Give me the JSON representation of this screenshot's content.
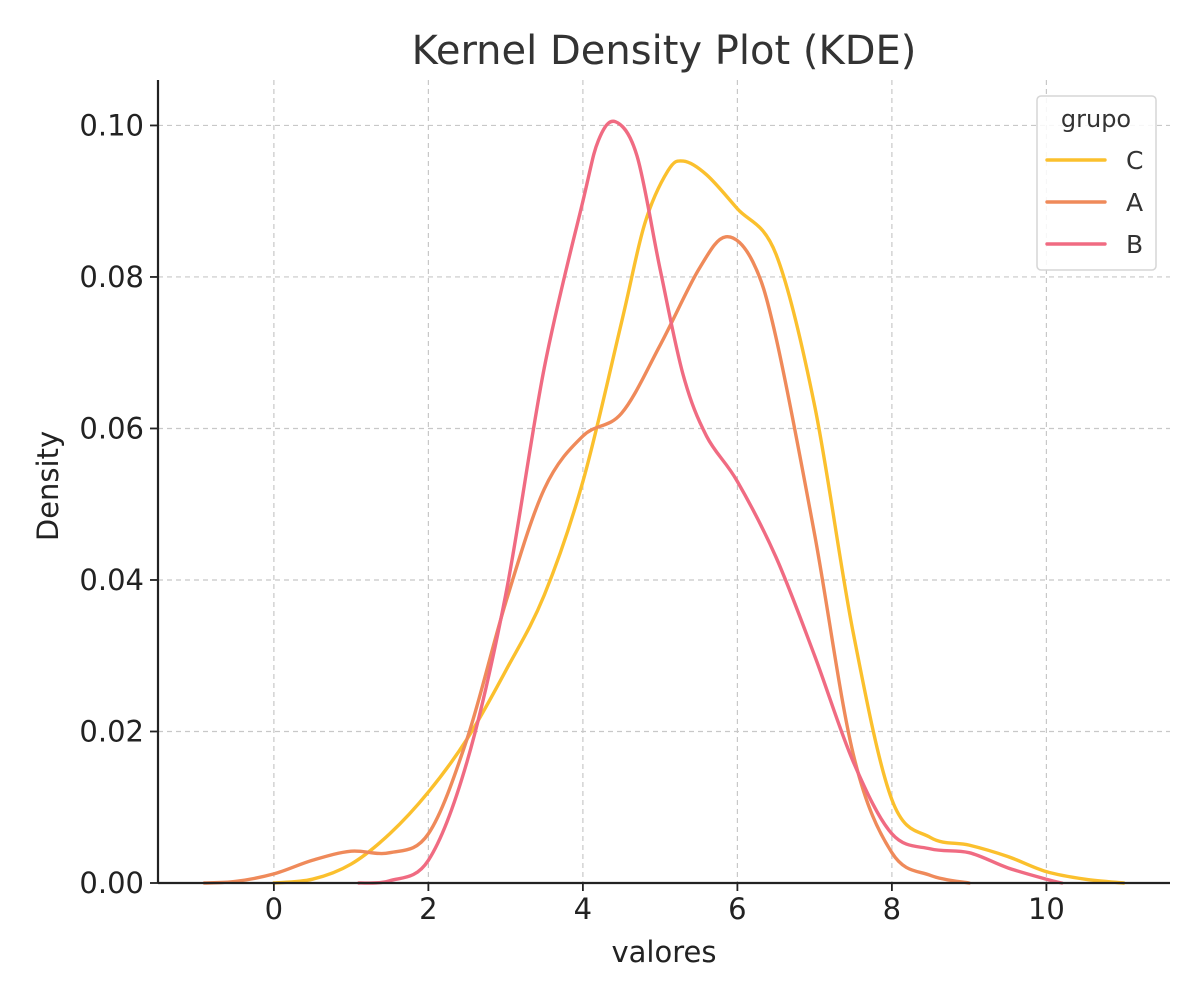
{
  "chart_data": {
    "type": "line",
    "title": "Kernel Density Plot (KDE)",
    "xlabel": "valores",
    "ylabel": "Density",
    "xlim": [
      -1.5,
      11.6
    ],
    "ylim": [
      0,
      0.106
    ],
    "xticks": [
      0,
      2,
      4,
      6,
      8,
      10
    ],
    "xtick_labels": [
      "0",
      "2",
      "4",
      "6",
      "8",
      "10"
    ],
    "yticks": [
      0,
      0.02,
      0.04,
      0.06,
      0.08,
      0.1
    ],
    "ytick_labels": [
      "0.00",
      "0.02",
      "0.04",
      "0.06",
      "0.08",
      "0.10"
    ],
    "grid": true,
    "legend": {
      "title": "grupo",
      "placement": "top-right"
    },
    "series": [
      {
        "name": "C",
        "color": "#fbc02d",
        "x": [
          0.0,
          0.5,
          1.0,
          1.5,
          2.0,
          2.5,
          3.0,
          3.5,
          4.0,
          4.5,
          4.8,
          5.1,
          5.3,
          5.6,
          6.0,
          6.5,
          7.0,
          7.5,
          8.0,
          8.5,
          9.0,
          9.5,
          10.0,
          10.5,
          11.0
        ],
        "y": [
          0.0,
          0.0005,
          0.0025,
          0.0065,
          0.012,
          0.019,
          0.028,
          0.038,
          0.053,
          0.074,
          0.087,
          0.094,
          0.0953,
          0.0935,
          0.089,
          0.083,
          0.063,
          0.033,
          0.011,
          0.006,
          0.005,
          0.0035,
          0.0015,
          0.0005,
          0.0
        ]
      },
      {
        "name": "A",
        "color": "#ef8a5a",
        "x": [
          -0.9,
          -0.5,
          0.0,
          0.5,
          1.0,
          1.5,
          2.0,
          2.5,
          3.0,
          3.5,
          4.0,
          4.5,
          5.0,
          5.5,
          5.85,
          6.2,
          6.5,
          7.0,
          7.5,
          8.0,
          8.5,
          9.0
        ],
        "y": [
          0.0,
          0.0002,
          0.0012,
          0.003,
          0.0042,
          0.004,
          0.0065,
          0.019,
          0.037,
          0.052,
          0.059,
          0.062,
          0.071,
          0.081,
          0.0853,
          0.082,
          0.072,
          0.046,
          0.017,
          0.004,
          0.001,
          0.0
        ]
      },
      {
        "name": "B",
        "color": "#f06b82",
        "x": [
          1.1,
          1.5,
          2.0,
          2.5,
          3.0,
          3.5,
          4.0,
          4.2,
          4.42,
          4.7,
          5.0,
          5.3,
          5.6,
          6.0,
          6.5,
          7.0,
          7.5,
          8.0,
          8.5,
          9.0,
          9.5,
          10.0,
          10.2
        ],
        "y": [
          0.0,
          0.0003,
          0.003,
          0.016,
          0.038,
          0.068,
          0.09,
          0.098,
          0.1005,
          0.096,
          0.081,
          0.067,
          0.059,
          0.053,
          0.043,
          0.03,
          0.016,
          0.0065,
          0.0045,
          0.004,
          0.002,
          0.0005,
          0.0
        ]
      }
    ]
  }
}
